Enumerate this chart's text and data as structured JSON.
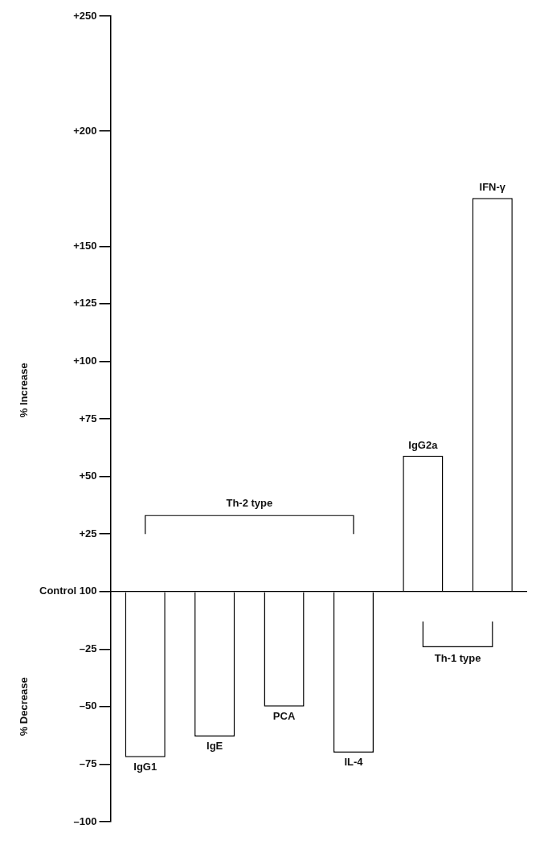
{
  "chart_data": {
    "type": "bar",
    "categories": [
      "IgG1",
      "IgE",
      "PCA",
      "IL-4",
      "IgG2a",
      "IFN-γ"
    ],
    "values": [
      -72,
      -63,
      -50,
      -70,
      59,
      171
    ],
    "color": "#ffffff",
    "ylabel": "% Increase",
    "ylim": [
      -100,
      250
    ],
    "yticks": [
      {
        "value": 250,
        "label": "+250"
      },
      {
        "value": 200,
        "label": "+200"
      },
      {
        "value": 150,
        "label": "+150"
      },
      {
        "value": 125,
        "label": "+125"
      },
      {
        "value": 100,
        "label": "+100"
      },
      {
        "value": 75,
        "label": "+75"
      },
      {
        "value": 50,
        "label": "+50"
      },
      {
        "value": 25,
        "label": "+25"
      },
      {
        "value": 0,
        "label": "Control 100"
      },
      {
        "value": -25,
        "label": "–25"
      },
      {
        "value": -50,
        "label": "–50"
      },
      {
        "value": -75,
        "label": "–75"
      },
      {
        "value": -100,
        "label": "–100"
      }
    ],
    "ref_lines": [
      {
        "axis": "y",
        "value": 0
      }
    ],
    "annotations": [
      "Th-2 type",
      "Th-1 type",
      "% Decrease"
    ]
  }
}
